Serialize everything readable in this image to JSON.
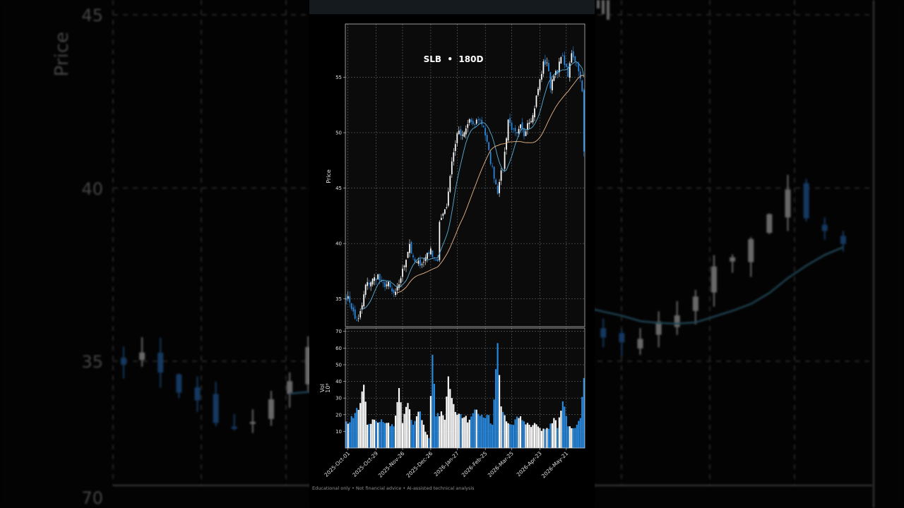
{
  "background": {
    "price_ticks": [
      "45",
      "40",
      "35"
    ],
    "volume_tick": "70",
    "axis_label": "Price"
  },
  "footer": {
    "disclaimer": "Educational only • Not financial advice • AI-assisted technical analysis"
  },
  "colors": {
    "up": "#ffffff",
    "down": "#2a8ae0",
    "ma_fast": "#5aaed8",
    "ma_slow": "#e8b98a",
    "grid": "#7a7a7a",
    "panel_bg": "#0b0b0b"
  },
  "chart_data": {
    "type": "candlestick",
    "title": "SLB  •  180D",
    "ylabel": "Price",
    "volume_label": "Vol",
    "volume_unit": "10⁶",
    "price_ylim": [
      32.5,
      59.8
    ],
    "price_ticks": [
      35,
      40,
      45,
      50,
      55
    ],
    "volume_ylim": [
      0,
      72
    ],
    "volume_ticks": [
      10,
      20,
      30,
      40,
      50,
      60,
      70
    ],
    "date_ticks": [
      "2025-Oct-01",
      "2025-Oct-29",
      "2025-Nov-26",
      "2025-Dec-26",
      "2026-Jan-27",
      "2026-Feb-25",
      "2026-Mar-25",
      "2026-Apr-23",
      "2026-May-21"
    ],
    "price_anchors": [
      [
        0,
        35.2
      ],
      [
        2,
        34.8
      ],
      [
        5,
        33.2
      ],
      [
        7,
        33.1
      ],
      [
        9,
        34.4
      ],
      [
        11,
        36.2
      ],
      [
        15,
        36.7
      ],
      [
        18,
        37.1
      ],
      [
        20,
        36.3
      ],
      [
        24,
        36.3
      ],
      [
        26,
        35.6
      ],
      [
        28,
        35.4
      ],
      [
        30,
        36.4
      ],
      [
        33,
        38.1
      ],
      [
        36,
        40.0
      ],
      [
        38,
        38.5
      ],
      [
        40,
        38.2
      ],
      [
        44,
        38.3
      ],
      [
        46,
        39.2
      ],
      [
        48,
        39.3
      ],
      [
        50,
        38.8
      ],
      [
        52,
        38.3
      ],
      [
        53,
        41.7
      ],
      [
        55,
        42.9
      ],
      [
        57,
        43.4
      ],
      [
        60,
        47.5
      ],
      [
        62,
        48.9
      ],
      [
        63,
        50.1
      ],
      [
        66,
        49.6
      ],
      [
        68,
        50.3
      ],
      [
        70,
        51.2
      ],
      [
        72,
        50.5
      ],
      [
        75,
        51.3
      ],
      [
        78,
        50.6
      ],
      [
        80,
        49.0
      ],
      [
        82,
        47.4
      ],
      [
        84,
        46.1
      ],
      [
        86,
        44.7
      ],
      [
        87,
        45.8
      ],
      [
        89,
        46.8
      ],
      [
        90,
        48.2
      ],
      [
        92,
        51.2
      ],
      [
        95,
        50.1
      ],
      [
        97,
        49.7
      ],
      [
        99,
        50.5
      ],
      [
        101,
        49.8
      ],
      [
        103,
        51.0
      ],
      [
        106,
        51.5
      ],
      [
        108,
        53.2
      ],
      [
        110,
        54.7
      ],
      [
        112,
        56.2
      ],
      [
        114,
        56.4
      ],
      [
        116,
        54.2
      ],
      [
        118,
        55.4
      ],
      [
        120,
        55.2
      ],
      [
        122,
        57.1
      ],
      [
        124,
        56.3
      ],
      [
        126,
        55.0
      ],
      [
        128,
        57.3
      ],
      [
        130,
        56.6
      ],
      [
        132,
        55.8
      ],
      [
        134,
        53.6
      ],
      [
        135,
        48.3
      ]
    ],
    "volume_anchors": [
      [
        0,
        16
      ],
      [
        4,
        18
      ],
      [
        8,
        27
      ],
      [
        10,
        38
      ],
      [
        12,
        14
      ],
      [
        16,
        17
      ],
      [
        22,
        15
      ],
      [
        27,
        13
      ],
      [
        30,
        36
      ],
      [
        32,
        15
      ],
      [
        35,
        27
      ],
      [
        38,
        14
      ],
      [
        42,
        22
      ],
      [
        44,
        14
      ],
      [
        46,
        8
      ],
      [
        47,
        6
      ],
      [
        49,
        56
      ],
      [
        51,
        19
      ],
      [
        54,
        22
      ],
      [
        56,
        17
      ],
      [
        58,
        43
      ],
      [
        60,
        30
      ],
      [
        63,
        20
      ],
      [
        66,
        18
      ],
      [
        70,
        17
      ],
      [
        74,
        23
      ],
      [
        77,
        20
      ],
      [
        80,
        20
      ],
      [
        83,
        14
      ],
      [
        86,
        63
      ],
      [
        88,
        25
      ],
      [
        91,
        16
      ],
      [
        94,
        14
      ],
      [
        98,
        18
      ],
      [
        101,
        16
      ],
      [
        104,
        14
      ],
      [
        107,
        15
      ],
      [
        110,
        12
      ],
      [
        114,
        12
      ],
      [
        118,
        18
      ],
      [
        120,
        12
      ],
      [
        123,
        28
      ],
      [
        126,
        13
      ],
      [
        130,
        12
      ],
      [
        133,
        18
      ],
      [
        135,
        42
      ]
    ],
    "ma_fast_period": 10,
    "ma_slow_period": 30,
    "grid": true
  }
}
